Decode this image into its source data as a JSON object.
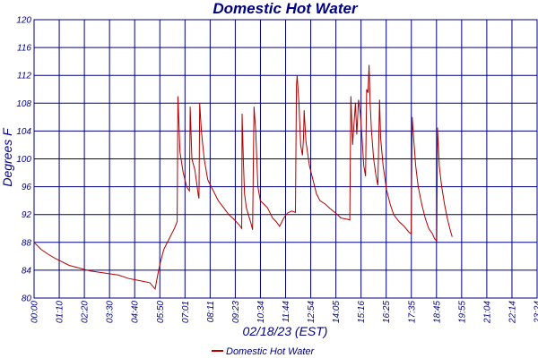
{
  "colors": {
    "axis": "#000080",
    "grid": "#000080",
    "series": "#b00000",
    "text": "#000080",
    "background": "#ffffff"
  },
  "chart_data": {
    "type": "line",
    "title": "Domestic Hot Water",
    "xlabel": "02/18/23 (EST)",
    "ylabel": "Degrees F",
    "ylim": [
      80,
      120
    ],
    "yticks": [
      "80",
      "84",
      "88",
      "92",
      "96",
      "100",
      "104",
      "108",
      "112",
      "116",
      "120"
    ],
    "xlim": [
      0,
      1434
    ],
    "xticks": [
      "00:00",
      "01:10",
      "02:20",
      "03:30",
      "04:40",
      "05:50",
      "07:01",
      "08:11",
      "09:23",
      "10:34",
      "11:44",
      "12:54",
      "14:05",
      "15:16",
      "16:25",
      "17:35",
      "18:45",
      "19:55",
      "21:04",
      "22:14",
      "23:24"
    ],
    "legend": [
      "Domestic Hot Water"
    ],
    "grid": true,
    "series": [
      {
        "name": "Domestic Hot Water",
        "points": [
          [
            0,
            88.0
          ],
          [
            20,
            87.0
          ],
          [
            40,
            86.3
          ],
          [
            60,
            85.7
          ],
          [
            80,
            85.2
          ],
          [
            100,
            84.7
          ],
          [
            130,
            84.3
          ],
          [
            160,
            83.9
          ],
          [
            200,
            83.6
          ],
          [
            240,
            83.3
          ],
          [
            270,
            82.8
          ],
          [
            290,
            82.6
          ],
          [
            310,
            82.4
          ],
          [
            330,
            82.2
          ],
          [
            345,
            81.3
          ],
          [
            355,
            84.0
          ],
          [
            362,
            85.5
          ],
          [
            370,
            87.0
          ],
          [
            385,
            88.5
          ],
          [
            400,
            90.0
          ],
          [
            408,
            91.0
          ],
          [
            410,
            109.0
          ],
          [
            413,
            105.0
          ],
          [
            416,
            101.0
          ],
          [
            425,
            98.0
          ],
          [
            435,
            96.0
          ],
          [
            440,
            95.6
          ],
          [
            443,
            95.4
          ],
          [
            445,
            107.5
          ],
          [
            450,
            100.0
          ],
          [
            458,
            98.5
          ],
          [
            465,
            96.0
          ],
          [
            468,
            94.8
          ],
          [
            470,
            94.3
          ],
          [
            472,
            108.0
          ],
          [
            477,
            104.0
          ],
          [
            485,
            100.0
          ],
          [
            495,
            97.0
          ],
          [
            505,
            96.0
          ],
          [
            515,
            95.0
          ],
          [
            525,
            94.0
          ],
          [
            540,
            93.0
          ],
          [
            555,
            92.0
          ],
          [
            570,
            91.3
          ],
          [
            585,
            90.5
          ],
          [
            592,
            90.0
          ],
          [
            593,
            106.5
          ],
          [
            597,
            99.0
          ],
          [
            600,
            95.0
          ],
          [
            605,
            93.0
          ],
          [
            612,
            91.8
          ],
          [
            618,
            90.8
          ],
          [
            623,
            89.8
          ],
          [
            627,
            107.5
          ],
          [
            632,
            104.0
          ],
          [
            638,
            96.0
          ],
          [
            645,
            94.0
          ],
          [
            655,
            93.5
          ],
          [
            665,
            93.0
          ],
          [
            680,
            91.5
          ],
          [
            690,
            91.0
          ],
          [
            700,
            90.3
          ],
          [
            712,
            91.5
          ],
          [
            722,
            92.2
          ],
          [
            735,
            92.5
          ],
          [
            745,
            92.3
          ],
          [
            748,
            110.5
          ],
          [
            750,
            112.0
          ],
          [
            755,
            108.0
          ],
          [
            760,
            102.0
          ],
          [
            765,
            100.5
          ],
          [
            768,
            103.0
          ],
          [
            770,
            107.0
          ],
          [
            775,
            102.5
          ],
          [
            785,
            99.0
          ],
          [
            795,
            97.0
          ],
          [
            805,
            95.0
          ],
          [
            815,
            94.0
          ],
          [
            830,
            93.5
          ],
          [
            845,
            92.8
          ],
          [
            860,
            92.2
          ],
          [
            875,
            91.5
          ],
          [
            895,
            91.3
          ],
          [
            900,
            91.2
          ],
          [
            903,
            109.0
          ],
          [
            908,
            102.0
          ],
          [
            912,
            105.0
          ],
          [
            916,
            108.0
          ],
          [
            920,
            103.5
          ],
          [
            925,
            108.5
          ],
          [
            930,
            106.5
          ],
          [
            935,
            103.0
          ],
          [
            940,
            99.0
          ],
          [
            945,
            97.5
          ],
          [
            948,
            110.0
          ],
          [
            952,
            109.5
          ],
          [
            955,
            113.5
          ],
          [
            958,
            108.0
          ],
          [
            962,
            104.0
          ],
          [
            968,
            100.0
          ],
          [
            975,
            97.5
          ],
          [
            980,
            96.2
          ],
          [
            985,
            108.5
          ],
          [
            988,
            103.0
          ],
          [
            995,
            99.0
          ],
          [
            1005,
            95.5
          ],
          [
            1015,
            93.5
          ],
          [
            1025,
            92.0
          ],
          [
            1040,
            91.0
          ],
          [
            1055,
            90.3
          ],
          [
            1068,
            89.5
          ],
          [
            1075,
            89.2
          ],
          [
            1078,
            106.0
          ],
          [
            1082,
            103.0
          ],
          [
            1088,
            99.0
          ],
          [
            1095,
            96.0
          ],
          [
            1105,
            93.5
          ],
          [
            1115,
            91.5
          ],
          [
            1125,
            90.0
          ],
          [
            1135,
            89.3
          ],
          [
            1142,
            88.5
          ],
          [
            1148,
            88.2
          ],
          [
            1150,
            104.5
          ],
          [
            1155,
            99.0
          ],
          [
            1162,
            96.0
          ],
          [
            1170,
            93.5
          ],
          [
            1178,
            91.5
          ],
          [
            1185,
            90.0
          ],
          [
            1192,
            88.8
          ]
        ]
      }
    ]
  }
}
